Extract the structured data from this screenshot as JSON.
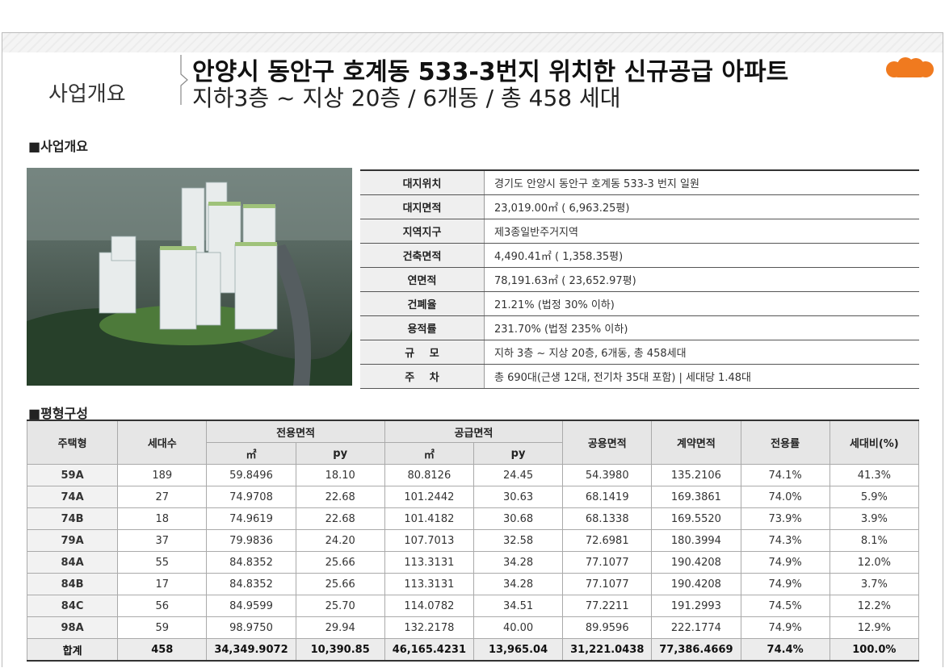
{
  "header": {
    "label": "사업개요",
    "title": "안양시 동안구 호계동 533-3번지 위치한 신규공급 아파트",
    "subtitle": "지하3층 ~ 지상 20층 / 6개동 / 총 458 세대"
  },
  "overview": {
    "heading": "■사업개요",
    "rows": [
      [
        "대지위치",
        "경기도 안양시 동안구 호계동 533-3 번지 일원"
      ],
      [
        "대지면적",
        "23,019.00㎡ ( 6,963.25평)"
      ],
      [
        "지역지구",
        "제3종일반주거지역"
      ],
      [
        "건축면적",
        "4,490.41㎡ ( 1,358.35평)"
      ],
      [
        "연면적",
        "78,191.63㎡ ( 23,652.97평)"
      ],
      [
        "건폐율",
        "21.21% (법정 30% 이하)"
      ],
      [
        "용적률",
        "231.70% (법정 235% 이하)"
      ],
      [
        "규 모",
        "지하 3층 ~ 지상 20층, 6개동, 총 458세대"
      ],
      [
        "주 차",
        "총 690대(근생 12대, 전기차 35대 포함)   |   세대당 1.48대"
      ]
    ]
  },
  "units": {
    "heading": "■평형구성",
    "header": [
      "주택형",
      "세대수",
      "전용면적",
      "공급면적",
      "공용면적",
      "계약면적",
      "전용률",
      "세대비(%)"
    ],
    "subheader": [
      "㎡",
      "py",
      "㎡",
      "py"
    ],
    "rows": [
      [
        "59A",
        "189",
        "59.8496",
        "18.10",
        "80.8126",
        "24.45",
        "54.3980",
        "135.2106",
        "74.1%",
        "41.3%"
      ],
      [
        "74A",
        "27",
        "74.9708",
        "22.68",
        "101.2442",
        "30.63",
        "68.1419",
        "169.3861",
        "74.0%",
        "5.9%"
      ],
      [
        "74B",
        "18",
        "74.9619",
        "22.68",
        "101.4182",
        "30.68",
        "68.1338",
        "169.5520",
        "73.9%",
        "3.9%"
      ],
      [
        "79A",
        "37",
        "79.9836",
        "24.20",
        "107.7013",
        "32.58",
        "72.6981",
        "180.3994",
        "74.3%",
        "8.1%"
      ],
      [
        "84A",
        "55",
        "84.8352",
        "25.66",
        "113.3131",
        "34.28",
        "77.1077",
        "190.4208",
        "74.9%",
        "12.0%"
      ],
      [
        "84B",
        "17",
        "84.8352",
        "25.66",
        "113.3131",
        "34.28",
        "77.1077",
        "190.4208",
        "74.9%",
        "3.7%"
      ],
      [
        "84C",
        "56",
        "84.9599",
        "25.70",
        "114.0782",
        "34.51",
        "77.2211",
        "191.2993",
        "74.5%",
        "12.2%"
      ],
      [
        "98A",
        "59",
        "98.9750",
        "29.94",
        "132.2178",
        "40.00",
        "89.9596",
        "222.1774",
        "74.9%",
        "12.9%"
      ]
    ],
    "total": [
      "합계",
      "458",
      "34,349.9072",
      "10,390.85",
      "46,165.4231",
      "13,965.04",
      "31,221.0438",
      "77,386.4669",
      "74.4%",
      "100.0%"
    ]
  }
}
